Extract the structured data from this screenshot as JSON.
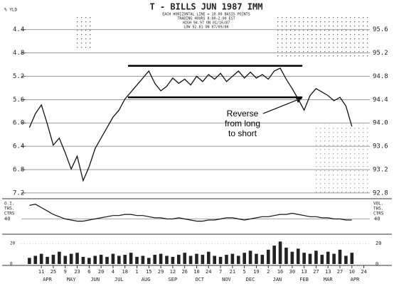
{
  "chart_data": {
    "type": "line",
    "title": "T - BILLS JUN 1987 IMM",
    "subtitle": [
      "EACH HORIZONTAL LINE = 10.00 BASIS POINTS",
      "TRADING HOURS 8:00-2:00 EST",
      "HIGH 94.97 ON 01/16/87",
      "LOW 92.81 ON 07/09/86"
    ],
    "y_label": "% YLD",
    "xlim": [
      -2.4,
      55
    ],
    "xticks": [
      {
        "value": 0,
        "label": "11"
      },
      {
        "value": 2,
        "label": "25"
      },
      {
        "value": 4,
        "label": "9"
      },
      {
        "value": 6,
        "label": "23"
      },
      {
        "value": 8,
        "label": "6"
      },
      {
        "value": 10,
        "label": "20"
      },
      {
        "value": 12,
        "label": "4"
      },
      {
        "value": 14,
        "label": "18"
      },
      {
        "value": 16,
        "label": "1"
      },
      {
        "value": 18,
        "label": "15"
      },
      {
        "value": 20,
        "label": "29"
      },
      {
        "value": 22,
        "label": "12"
      },
      {
        "value": 24,
        "label": "26"
      },
      {
        "value": 26,
        "label": "10"
      },
      {
        "value": 28,
        "label": "24"
      },
      {
        "value": 30,
        "label": "7"
      },
      {
        "value": 32,
        "label": "21"
      },
      {
        "value": 34,
        "label": "5"
      },
      {
        "value": 36,
        "label": "19"
      },
      {
        "value": 38,
        "label": "2"
      },
      {
        "value": 40,
        "label": "16"
      },
      {
        "value": 42,
        "label": "30"
      },
      {
        "value": 44,
        "label": "13"
      },
      {
        "value": 46,
        "label": "27"
      },
      {
        "value": 48,
        "label": "13"
      },
      {
        "value": 50,
        "label": "27"
      },
      {
        "value": 52,
        "label": "10"
      },
      {
        "value": 54,
        "label": "24"
      }
    ],
    "month_labels": [
      {
        "value": 1,
        "label": "APR"
      },
      {
        "value": 5,
        "label": "MAY"
      },
      {
        "value": 9,
        "label": "JUN"
      },
      {
        "value": 13,
        "label": "JUL"
      },
      {
        "value": 17.5,
        "label": "AUG"
      },
      {
        "value": 22,
        "label": "SEP"
      },
      {
        "value": 26.5,
        "label": "OCT"
      },
      {
        "value": 31,
        "label": "NOV"
      },
      {
        "value": 35,
        "label": "DEC"
      },
      {
        "value": 39.5,
        "label": "JAN"
      },
      {
        "value": 44,
        "label": "FEB"
      },
      {
        "value": 48,
        "label": "MAR"
      },
      {
        "value": 52.5,
        "label": "APR"
      }
    ],
    "ylim": [
      92.75,
      95.84
    ],
    "yticks": [
      95.6,
      95.2,
      94.8,
      94.4,
      {
        "value": 94,
        "label": "94.0"
      },
      93.6,
      93.2,
      92.8
    ],
    "y2lim": [
      7.25,
      4.16
    ],
    "y2ticks": [
      4.4,
      4.8,
      5.2,
      5.6,
      {
        "value": 6,
        "label": "6.0"
      },
      6.4,
      6.8,
      7.2
    ],
    "grid": true,
    "x": [
      -2,
      -1,
      0,
      1,
      2,
      3,
      4,
      5,
      6,
      7,
      8,
      9,
      10,
      11,
      12,
      13,
      14,
      15,
      16,
      17,
      18,
      19,
      20,
      21,
      22,
      23,
      24,
      25,
      26,
      27,
      28,
      29,
      30,
      31,
      32,
      33,
      34,
      35,
      36,
      37,
      38,
      39,
      40,
      41,
      42,
      43,
      44,
      45,
      46,
      47,
      48,
      49,
      50,
      51,
      52
    ],
    "series": [
      {
        "color": "#111111",
        "values": [
          93.92,
          94.16,
          94.31,
          93.98,
          93.62,
          93.74,
          93.49,
          93.21,
          93.43,
          93.01,
          93.25,
          93.56,
          93.74,
          93.92,
          94.1,
          94.22,
          94.41,
          94.53,
          94.65,
          94.77,
          94.89,
          94.68,
          94.55,
          94.63,
          94.77,
          94.68,
          94.75,
          94.65,
          94.8,
          94.71,
          94.83,
          94.75,
          94.85,
          94.71,
          94.8,
          94.89,
          94.77,
          94.87,
          94.77,
          94.83,
          94.75,
          94.89,
          94.94,
          94.75,
          94.59,
          94.41,
          94.22,
          94.47,
          94.59,
          94.53,
          94.47,
          94.38,
          94.44,
          94.29,
          93.94
        ]
      }
    ],
    "reference_lines": [
      {
        "value": 94.98,
        "x": [
          14.5,
          43.7
        ]
      },
      {
        "value": 94.44,
        "x": [
          14.5,
          43.7
        ]
      }
    ],
    "annotation": [
      "Reverse",
      "from long",
      "to short"
    ],
    "open_interest": {
      "label": [
        "O.I.",
        "THS.",
        "CTRS"
      ],
      "label_right": [
        "VOL.",
        "THS.",
        "CTRS"
      ],
      "ylim": [
        34,
        56
      ],
      "yticks": [
        40
      ],
      "values": [
        52,
        53,
        50,
        47,
        44,
        42,
        40,
        39,
        38,
        38,
        39,
        40,
        41,
        42,
        43,
        43,
        44,
        44,
        43,
        43,
        42,
        41,
        41,
        40,
        40,
        41,
        40,
        39,
        38,
        38,
        39,
        39,
        40,
        41,
        41,
        40,
        39,
        40,
        41,
        42,
        42,
        43,
        44,
        44,
        45,
        44,
        43,
        42,
        42,
        41,
        41,
        40,
        40,
        39,
        39
      ]
    },
    "volume": {
      "ylim": [
        0,
        25
      ],
      "yticks": [
        0,
        20
      ],
      "values": [
        6,
        8,
        10,
        7,
        9,
        12,
        8,
        10,
        11,
        7,
        6,
        8,
        9,
        7,
        10,
        8,
        9,
        11,
        7,
        8,
        6,
        9,
        10,
        8,
        7,
        9,
        11,
        8,
        10,
        9,
        12,
        8,
        7,
        9,
        10,
        8,
        11,
        13,
        10,
        9,
        14,
        18,
        22,
        16,
        12,
        15,
        11,
        10,
        13,
        9,
        12,
        10,
        14,
        8,
        11
      ]
    }
  }
}
